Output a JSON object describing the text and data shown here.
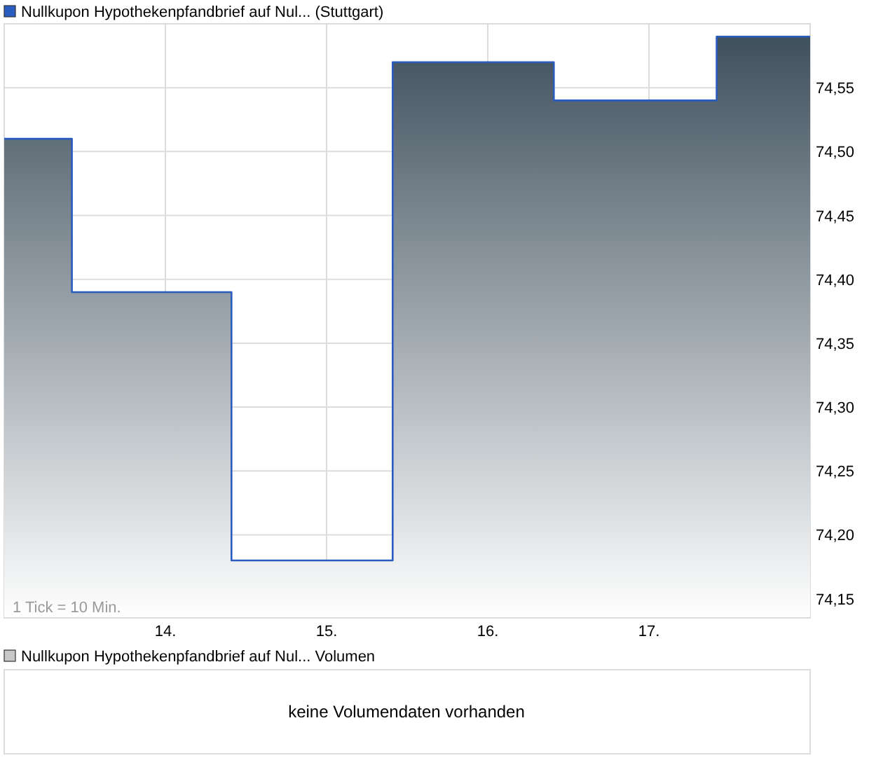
{
  "chart_data": [
    {
      "type": "area",
      "x": [
        13,
        13.42,
        13.42,
        14.41,
        14.41,
        15.41,
        15.41,
        16.41,
        16.41,
        17.42,
        17.42,
        18
      ],
      "series": [
        {
          "name": "Nullkupon Hypothekenpfandbrief auf Nul... (Stuttgart)",
          "color": "#2a5cc0",
          "values": [
            74.51,
            74.51,
            74.39,
            74.39,
            74.18,
            74.18,
            74.57,
            74.57,
            74.54,
            74.54,
            74.59,
            74.59
          ]
        }
      ],
      "xlim": [
        13,
        18
      ],
      "xticks": [
        {
          "value": 14,
          "label": "14."
        },
        {
          "value": 15,
          "label": "15."
        },
        {
          "value": 16,
          "label": "16."
        },
        {
          "value": 17,
          "label": "17."
        }
      ],
      "ylim": [
        74.135,
        74.6
      ],
      "yticks": [
        {
          "value": 74.15,
          "label": "74,15"
        },
        {
          "value": 74.2,
          "label": "74,20"
        },
        {
          "value": 74.25,
          "label": "74,25"
        },
        {
          "value": 74.3,
          "label": "74,30"
        },
        {
          "value": 74.35,
          "label": "74,35"
        },
        {
          "value": 74.4,
          "label": "74,40"
        },
        {
          "value": 74.45,
          "label": "74,45"
        },
        {
          "value": 74.5,
          "label": "74,50"
        },
        {
          "value": 74.55,
          "label": "74,55"
        }
      ],
      "grid": true,
      "legend": "top left",
      "annotations": [
        "1 Tick = 10 Min."
      ]
    },
    {
      "type": "other",
      "title": "Nullkupon Hypothekenpfandbrief auf Nul... Volumen",
      "annotations": [
        "keine Volumendaten vorhanden"
      ]
    }
  ]
}
